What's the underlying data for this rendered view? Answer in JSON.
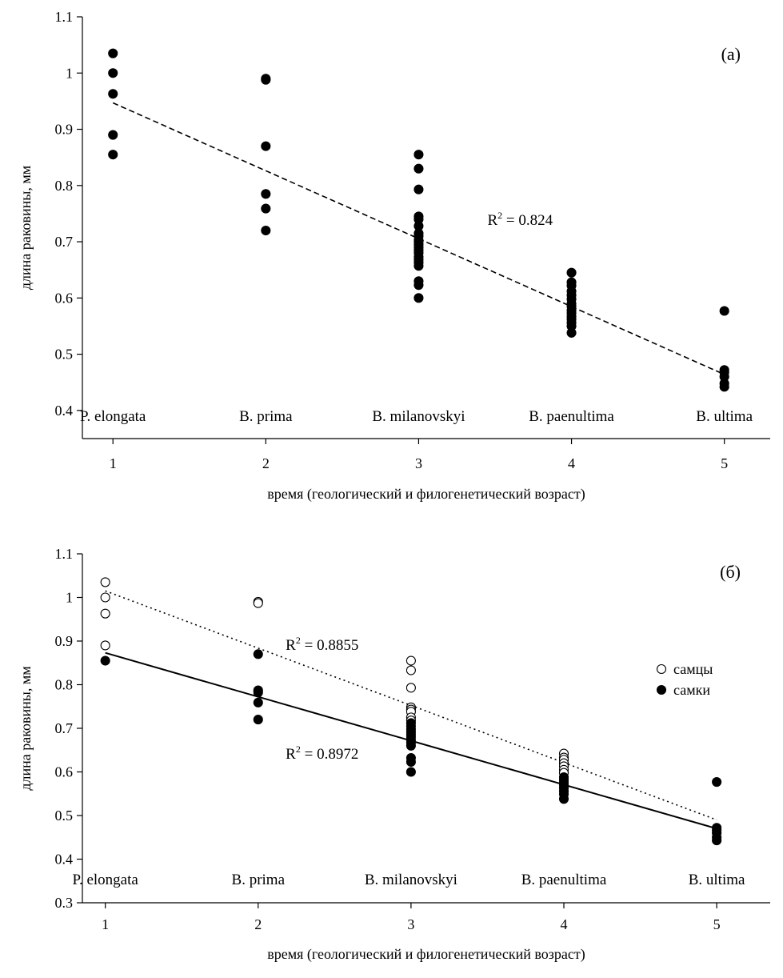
{
  "chart_data": [
    {
      "type": "scatter",
      "panel_label": "(a)",
      "xlabel": "время (геологический и филогенетический возраст)",
      "ylabel": "длина раковины, мм",
      "xlim": [
        0.8,
        5.3
      ],
      "ylim": [
        0.35,
        1.1
      ],
      "x_ticks": [
        1,
        2,
        3,
        4,
        5
      ],
      "y_ticks": [
        0.4,
        0.5,
        0.6,
        0.7,
        0.8,
        0.9,
        1.0,
        1.1
      ],
      "y_tick_labels": [
        "0.4",
        "0.5",
        "0.6",
        "0.7",
        "0.8",
        "0.9",
        "1",
        "1.1"
      ],
      "grid": false,
      "category_labels": [
        {
          "x": 1,
          "label": "P. elongata"
        },
        {
          "x": 2,
          "label": "B. prima"
        },
        {
          "x": 3,
          "label": "B. milanovskyi"
        },
        {
          "x": 4,
          "label": "B. paenultima"
        },
        {
          "x": 5,
          "label": "B. ultima"
        }
      ],
      "series": [
        {
          "marker": "filled",
          "color": "#000000",
          "points": [
            [
              1,
              1.035
            ],
            [
              1,
              1.0
            ],
            [
              1,
              0.963
            ],
            [
              1,
              0.89
            ],
            [
              1,
              0.855
            ],
            [
              2,
              0.99
            ],
            [
              2,
              0.988
            ],
            [
              2,
              0.87
            ],
            [
              2,
              0.785
            ],
            [
              2,
              0.759
            ],
            [
              2,
              0.72
            ],
            [
              3,
              0.855
            ],
            [
              3,
              0.83
            ],
            [
              3,
              0.793
            ],
            [
              3,
              0.745
            ],
            [
              3,
              0.74
            ],
            [
              3,
              0.728
            ],
            [
              3,
              0.715
            ],
            [
              3,
              0.71
            ],
            [
              3,
              0.703
            ],
            [
              3,
              0.7
            ],
            [
              3,
              0.695
            ],
            [
              3,
              0.69
            ],
            [
              3,
              0.685
            ],
            [
              3,
              0.68
            ],
            [
              3,
              0.673
            ],
            [
              3,
              0.668
            ],
            [
              3,
              0.663
            ],
            [
              3,
              0.657
            ],
            [
              3,
              0.63
            ],
            [
              3,
              0.623
            ],
            [
              3,
              0.6
            ],
            [
              4,
              0.645
            ],
            [
              4,
              0.628
            ],
            [
              4,
              0.622
            ],
            [
              4,
              0.612
            ],
            [
              4,
              0.605
            ],
            [
              4,
              0.598
            ],
            [
              4,
              0.59
            ],
            [
              4,
              0.585
            ],
            [
              4,
              0.578
            ],
            [
              4,
              0.573
            ],
            [
              4,
              0.567
            ],
            [
              4,
              0.562
            ],
            [
              4,
              0.556
            ],
            [
              4,
              0.55
            ],
            [
              4,
              0.538
            ],
            [
              5,
              0.577
            ],
            [
              5,
              0.472
            ],
            [
              5,
              0.468
            ],
            [
              5,
              0.46
            ],
            [
              5,
              0.448
            ],
            [
              5,
              0.442
            ]
          ]
        }
      ],
      "trendlines": [
        {
          "style": "dashed",
          "x": [
            1,
            5
          ],
          "y": [
            0.947,
            0.464
          ],
          "r2_label": "R",
          "r2_exp": "2",
          "r2_value": " = 0.824",
          "label_pos": [
            3.45,
            0.73
          ]
        }
      ]
    },
    {
      "type": "scatter",
      "panel_label": "(б)",
      "xlabel": "время (геологический и филогенетический возраст)",
      "ylabel": "длина раковины, мм",
      "xlim": [
        0.85,
        5.35
      ],
      "ylim": [
        0.3,
        1.1
      ],
      "x_ticks": [
        1,
        2,
        3,
        4,
        5
      ],
      "y_ticks": [
        0.3,
        0.4,
        0.5,
        0.6,
        0.7,
        0.8,
        0.9,
        1.0,
        1.1
      ],
      "y_tick_labels": [
        "0.3",
        "0.4",
        "0.5",
        "0.6",
        "0.7",
        "0.8",
        "0.9",
        "1",
        "1.1"
      ],
      "grid": false,
      "category_labels": [
        {
          "x": 1,
          "label": "P. elongata"
        },
        {
          "x": 2,
          "label": "B. prima"
        },
        {
          "x": 3,
          "label": "B. milanovskyi"
        },
        {
          "x": 4,
          "label": "B. paenultima"
        },
        {
          "x": 5,
          "label": "B. ultima"
        }
      ],
      "legend": {
        "placement": "right",
        "items": [
          {
            "marker": "open",
            "label": "самцы"
          },
          {
            "marker": "filled",
            "label": "самки"
          }
        ]
      },
      "series": [
        {
          "name": "самцы",
          "marker": "open",
          "color": "#000000",
          "points": [
            [
              1,
              1.035
            ],
            [
              1,
              1.0
            ],
            [
              1,
              0.963
            ],
            [
              1,
              0.89
            ],
            [
              2,
              0.99
            ],
            [
              2,
              0.987
            ],
            [
              3,
              0.855
            ],
            [
              3,
              0.833
            ],
            [
              3,
              0.793
            ],
            [
              3,
              0.748
            ],
            [
              3,
              0.743
            ],
            [
              3,
              0.738
            ],
            [
              3,
              0.725
            ],
            [
              3,
              0.718
            ],
            [
              4,
              0.642
            ],
            [
              4,
              0.633
            ],
            [
              4,
              0.628
            ],
            [
              4,
              0.62
            ],
            [
              4,
              0.613
            ],
            [
              4,
              0.605
            ],
            [
              4,
              0.598
            ]
          ]
        },
        {
          "name": "самки",
          "marker": "filled",
          "color": "#000000",
          "points": [
            [
              1,
              0.855
            ],
            [
              2,
              0.87
            ],
            [
              2,
              0.787
            ],
            [
              2,
              0.782
            ],
            [
              2,
              0.759
            ],
            [
              2,
              0.72
            ],
            [
              3,
              0.712
            ],
            [
              3,
              0.705
            ],
            [
              3,
              0.698
            ],
            [
              3,
              0.692
            ],
            [
              3,
              0.686
            ],
            [
              3,
              0.68
            ],
            [
              3,
              0.673
            ],
            [
              3,
              0.667
            ],
            [
              3,
              0.66
            ],
            [
              3,
              0.632
            ],
            [
              3,
              0.623
            ],
            [
              3,
              0.6
            ],
            [
              4,
              0.588
            ],
            [
              4,
              0.582
            ],
            [
              4,
              0.576
            ],
            [
              4,
              0.57
            ],
            [
              4,
              0.563
            ],
            [
              4,
              0.556
            ],
            [
              4,
              0.549
            ],
            [
              4,
              0.538
            ],
            [
              5,
              0.577
            ],
            [
              5,
              0.472
            ],
            [
              5,
              0.466
            ],
            [
              5,
              0.46
            ],
            [
              5,
              0.45
            ],
            [
              5,
              0.443
            ]
          ]
        }
      ],
      "trendlines": [
        {
          "style": "dotted",
          "x": [
            1,
            5
          ],
          "y": [
            1.015,
            0.49
          ],
          "r2_label": "R",
          "r2_exp": "2",
          "r2_value": " = 0.8855",
          "label_pos": [
            2.18,
            0.88
          ]
        },
        {
          "style": "solid",
          "x": [
            1,
            5
          ],
          "y": [
            0.873,
            0.47
          ],
          "r2_label": "R",
          "r2_exp": "2",
          "r2_value": " = 0.8972",
          "label_pos": [
            2.18,
            0.63
          ]
        }
      ]
    }
  ]
}
